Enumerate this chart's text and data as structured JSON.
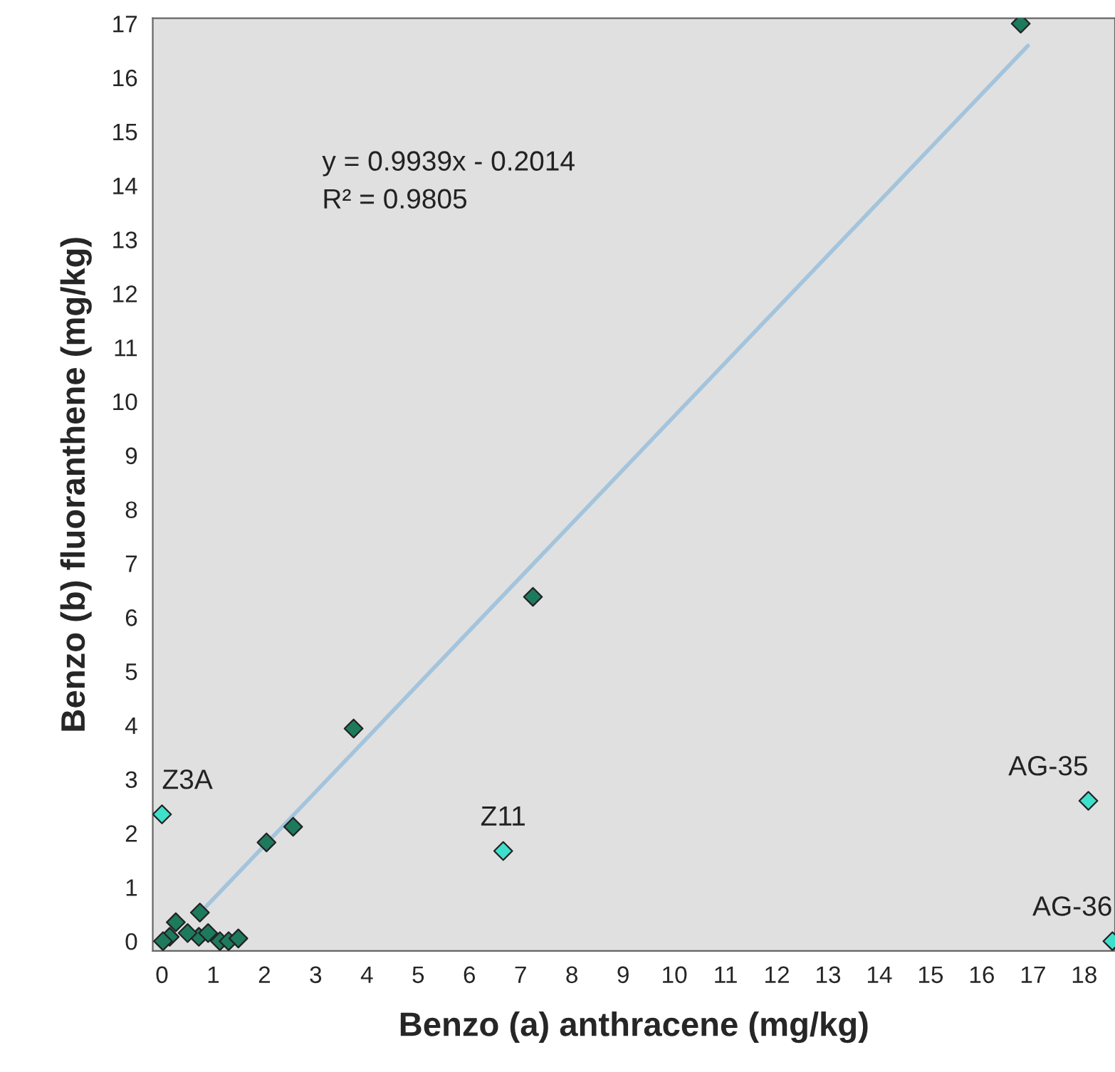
{
  "chart_data": {
    "type": "scatter",
    "xlabel": "Benzo (a) anthracene (mg/kg)",
    "ylabel": "Benzo (b) fluoranthene (mg/kg)",
    "series": [
      {
        "color": "#1e7a5c",
        "x": [
          16.76,
          7.24,
          3.74,
          2.56,
          2.04,
          0.74,
          0.27,
          0.15,
          0.72,
          0.9,
          1.13,
          1.3,
          1.49,
          0.02,
          0.5
        ],
        "values": [
          17.0,
          6.38,
          3.94,
          2.12,
          1.83,
          0.53,
          0.35,
          0.08,
          0.08,
          0.15,
          0.0,
          0.0,
          0.05,
          0.0,
          0.15
        ]
      },
      {
        "color": "#3ee0cc",
        "x": [
          0.0,
          6.66,
          18.08,
          18.55
        ],
        "values": [
          2.35,
          1.67,
          2.6,
          0.0
        ]
      },
      {
        "type": "line",
        "color": "#a3c4dc",
        "marker": "none",
        "x": [
          0.8,
          16.9
        ],
        "values": [
          0.58,
          16.59
        ]
      }
    ],
    "marker": "diamond",
    "annotations": [
      "y = 0.9939x - 0.2014\nR² = 0.9805",
      {
        "text": "Z3A",
        "x": 0.0,
        "y": 2.35
      },
      {
        "text": "Z11",
        "x": 6.66,
        "y": 1.67
      },
      {
        "text": "AG-35",
        "x": 18.08,
        "y": 2.6
      },
      {
        "text": "AG-36",
        "x": 18.55,
        "y": 0.0
      }
    ],
    "xlim": [
      -0.18,
      18.6
    ],
    "ylim": [
      -0.18,
      17.1
    ],
    "xticks": [
      0,
      1,
      2,
      3,
      4,
      5,
      6,
      7,
      8,
      9,
      10,
      11,
      12,
      13,
      14,
      15,
      16,
      17,
      18
    ],
    "yticks": [
      0,
      1,
      2,
      3,
      4,
      5,
      6,
      7,
      8,
      9,
      10,
      11,
      12,
      13,
      14,
      15,
      16,
      17
    ],
    "grid": false,
    "legend": false
  }
}
